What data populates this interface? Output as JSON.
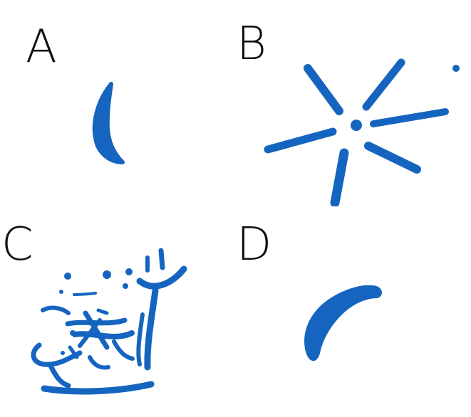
{
  "panels": [
    {
      "label": "A",
      "drawing": "crescent-stroke"
    },
    {
      "label": "B",
      "drawing": "star-burst-strokes"
    },
    {
      "label": "C",
      "drawing": "scribbled-cluster"
    },
    {
      "label": "D",
      "drawing": "curved-blob-stroke"
    }
  ],
  "colors": {
    "ink": "#1565c0",
    "label": "#111111",
    "background": "#ffffff"
  }
}
